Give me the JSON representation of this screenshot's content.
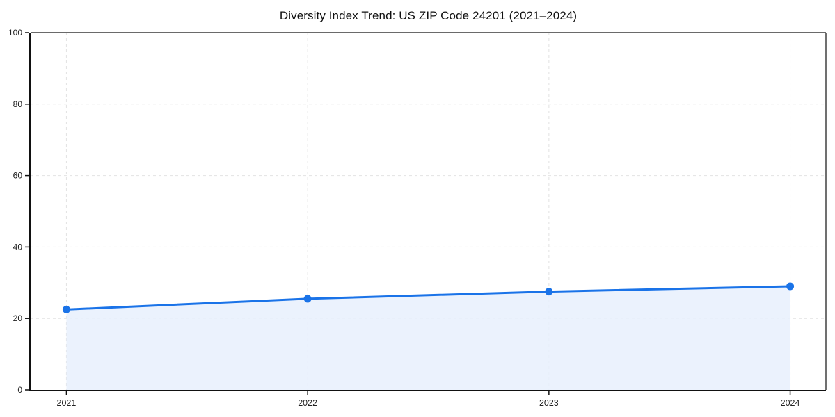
{
  "chart_data": {
    "type": "area",
    "title": "Diversity Index Trend: US ZIP Code 24201 (2021–2024)",
    "x": [
      "2021",
      "2022",
      "2023",
      "2024"
    ],
    "series": [
      {
        "name": "Diversity Index",
        "values": [
          22.5,
          25.5,
          27.5,
          29
        ]
      }
    ],
    "xlabel": "",
    "ylabel": "",
    "ylim": [
      0,
      100
    ],
    "yticks": [
      0,
      20,
      40,
      60,
      80,
      100
    ],
    "grid": true,
    "grid_style": "dashed",
    "legend": "none",
    "colors": {
      "line": "#1a73e8",
      "marker": "#1a73e8",
      "area_fill": "#e8f0fd",
      "gridline": "#e2e2e2",
      "spine": "#111111",
      "tick_label": "#222222",
      "title_text": "#111111",
      "background": "#ffffff"
    },
    "marker_shape": "circle"
  }
}
